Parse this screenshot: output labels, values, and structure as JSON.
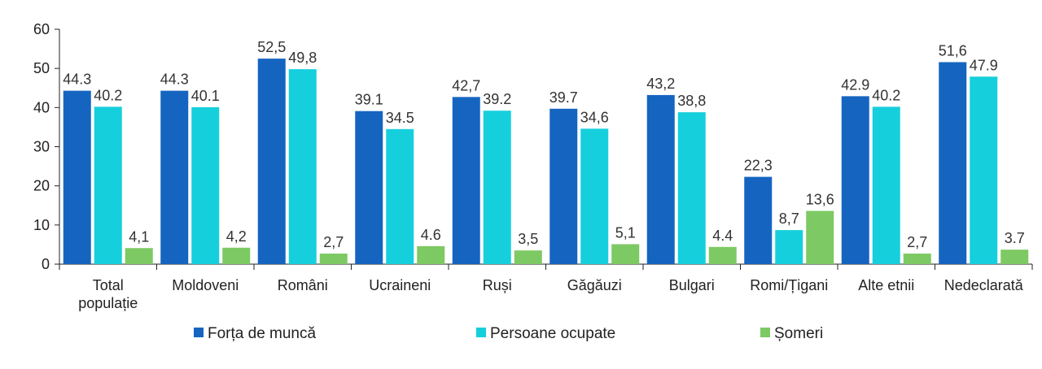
{
  "chart_data": {
    "type": "bar",
    "categories": [
      [
        "Total",
        "populație"
      ],
      [
        "Moldoveni"
      ],
      [
        "Români"
      ],
      [
        "Ucraineni"
      ],
      [
        "Ruși"
      ],
      [
        "Găgăuzi"
      ],
      [
        "Bulgari"
      ],
      [
        "Romi/Țigani"
      ],
      [
        "Alte etnii"
      ],
      [
        "Nedeclarată"
      ]
    ],
    "series": [
      {
        "name": "Forța de muncă",
        "color": "#1565C0",
        "values": [
          44.3,
          44.3,
          52.5,
          39.1,
          42.7,
          39.7,
          43.2,
          22.3,
          42.9,
          51.6
        ],
        "labels": [
          "44.3",
          "44.3",
          "52,5",
          "39.1",
          "42,7",
          "39.7",
          "43,2",
          "22,3",
          "42.9",
          "51,6"
        ]
      },
      {
        "name": "Persoane ocupate",
        "color": "#16CFDC",
        "values": [
          40.2,
          40.1,
          49.8,
          34.5,
          39.2,
          34.6,
          38.8,
          8.7,
          40.2,
          47.9
        ],
        "labels": [
          "40.2",
          "40.1",
          "49,8",
          "34.5",
          "39.2",
          "34,6",
          "38,8",
          "8,7",
          "40.2",
          "47.9"
        ]
      },
      {
        "name": "Șomeri",
        "color": "#7DC963",
        "values": [
          4.1,
          4.2,
          2.7,
          4.6,
          3.5,
          5.1,
          4.4,
          13.6,
          2.7,
          3.7
        ],
        "labels": [
          "4,1",
          "4,2",
          "2,7",
          "4.6",
          "3,5",
          "5,1",
          "4.4",
          "13,6",
          "2,7",
          "3.7"
        ]
      }
    ],
    "ylim": [
      0,
      60
    ],
    "yticks": [
      0,
      10,
      20,
      30,
      40,
      50,
      60
    ],
    "grid": false,
    "legend": "bottom"
  }
}
